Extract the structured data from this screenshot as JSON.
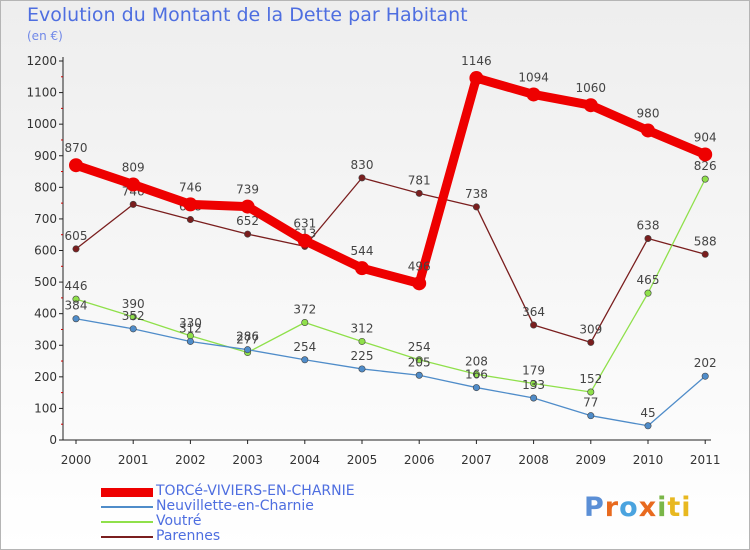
{
  "title": "Evolution du Montant de la Dette par Habitant",
  "unit_label": "(en €)",
  "brand": "Proxiti",
  "brand_colors": [
    "#5b8fd6",
    "#e86a1f",
    "#4aa3df",
    "#e86a1f",
    "#7ab648",
    "#e8b820",
    "#e8b820"
  ],
  "chart_data": {
    "type": "line",
    "categories": [
      "2000",
      "2001",
      "2002",
      "2003",
      "2004",
      "2005",
      "2006",
      "2007",
      "2008",
      "2009",
      "2010",
      "2011"
    ],
    "xlabel": "",
    "ylabel": "",
    "ylim": [
      0,
      1200
    ],
    "yticks": [
      0,
      100,
      200,
      300,
      400,
      500,
      600,
      700,
      800,
      900,
      1000,
      1100,
      1200
    ],
    "grid": false,
    "legend": "bottom-left",
    "series": [
      {
        "name": "Parennes",
        "color": "#7a1e1e",
        "values": [
          605,
          746,
          698,
          652,
          613,
          830,
          781,
          738,
          364,
          309,
          638,
          588
        ]
      },
      {
        "name": "Voutré",
        "color": "#8fe04a",
        "values": [
          446,
          390,
          330,
          277,
          372,
          312,
          254,
          208,
          179,
          152,
          465,
          826
        ]
      },
      {
        "name": "Neuvillette-en-Charnie",
        "color": "#4f8cc9",
        "values": [
          384,
          352,
          312,
          286,
          254,
          225,
          205,
          166,
          133,
          77,
          45,
          202
        ]
      },
      {
        "name": "TORCé-VIVIERS-EN-CHARNIE",
        "color": "#ee0000",
        "values": [
          870,
          809,
          746,
          739,
          631,
          544,
          496,
          1146,
          1094,
          1060,
          980,
          904
        ]
      }
    ],
    "legend_order": [
      "TORCé-VIVIERS-EN-CHARNIE",
      "Neuvillette-en-Charnie",
      "Voutré",
      "Parennes"
    ]
  }
}
